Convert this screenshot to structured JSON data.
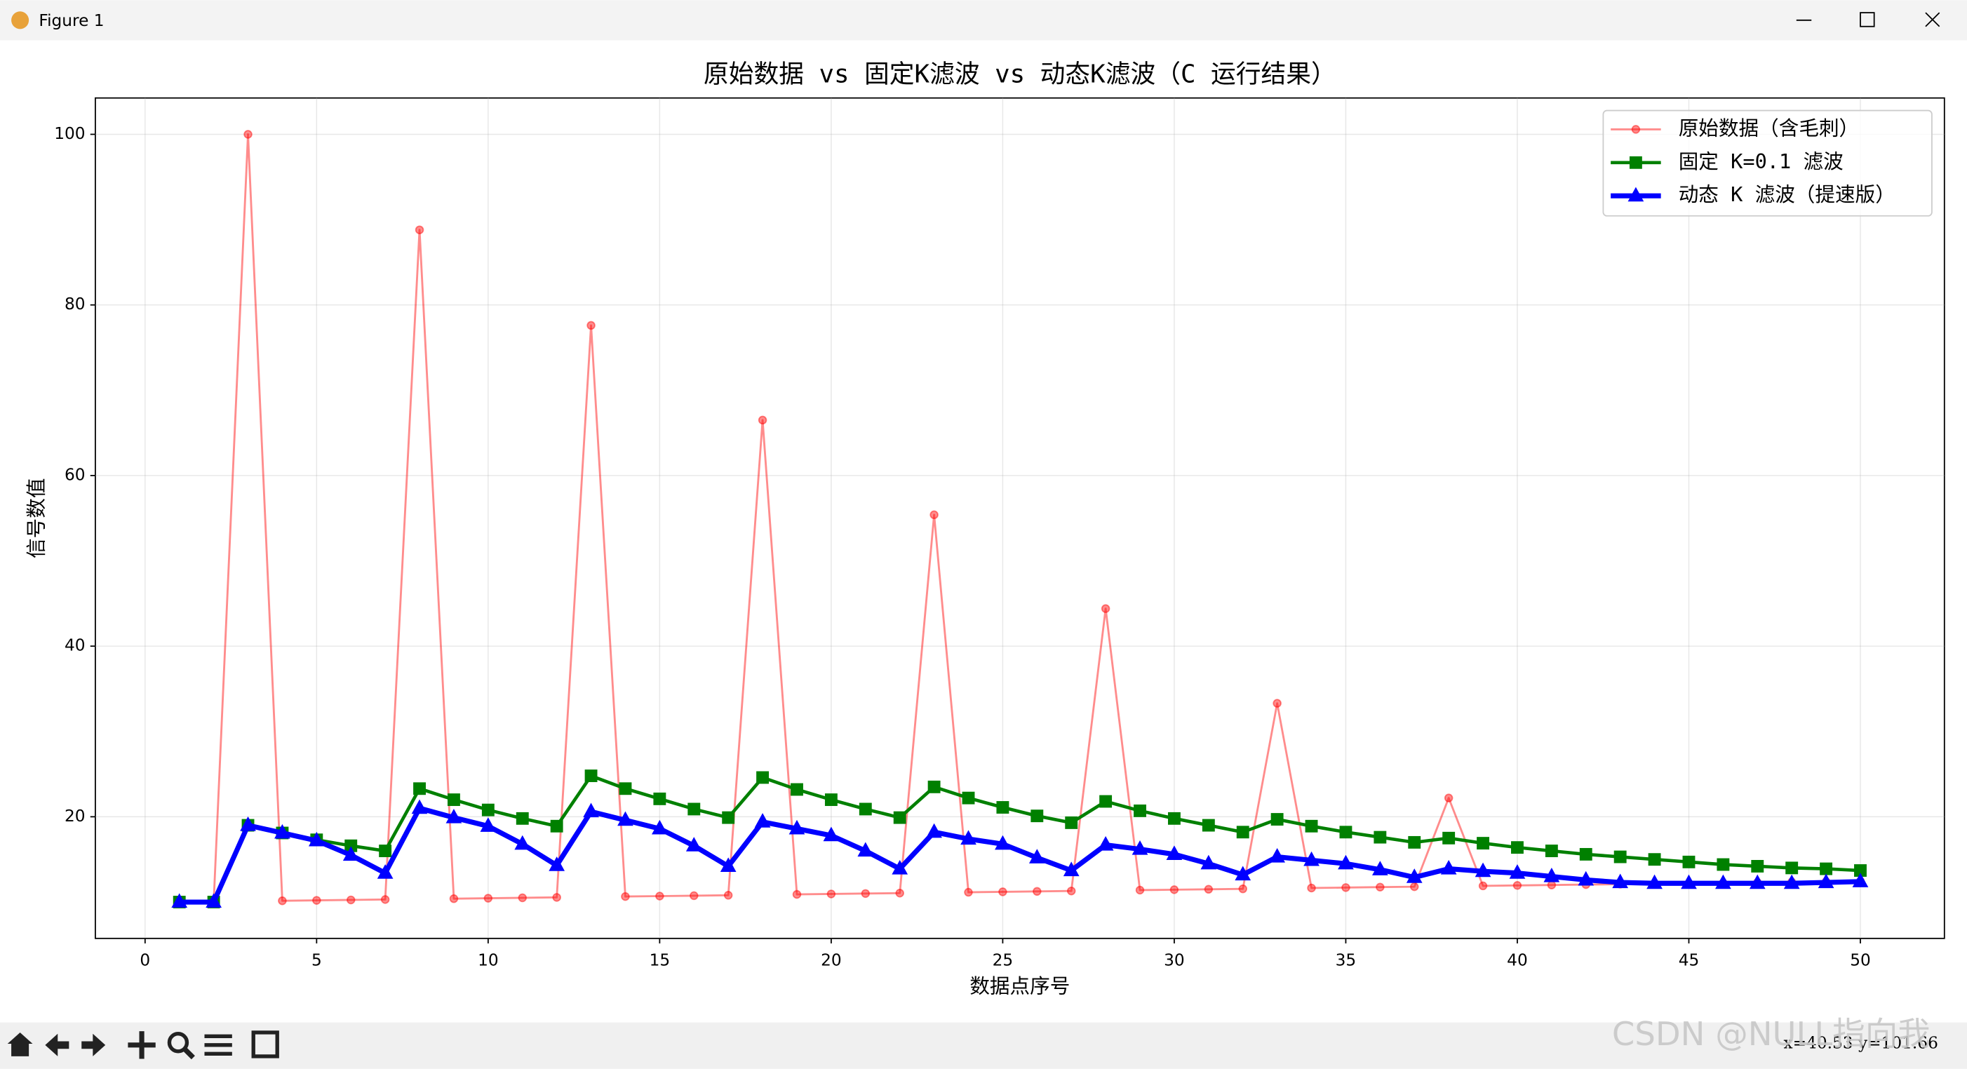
{
  "window": {
    "title": "Figure 1",
    "status": "x=40.53 y=101.66",
    "watermark": "CSDN @NULL指向我"
  },
  "chart_data": {
    "type": "line",
    "title": "原始数据 vs 固定K滤波 vs 动态K滤波（C 运行结果）",
    "x_label": "数据点序号",
    "y_label": "信号数值",
    "x": [
      1,
      2,
      3,
      4,
      5,
      6,
      7,
      8,
      9,
      10,
      11,
      12,
      13,
      14,
      15,
      16,
      17,
      18,
      19,
      20,
      21,
      22,
      23,
      24,
      25,
      26,
      27,
      28,
      29,
      30,
      31,
      32,
      33,
      34,
      35,
      36,
      37,
      38,
      39,
      40,
      41,
      42,
      43,
      44,
      45,
      46,
      47,
      48,
      49,
      50
    ],
    "series": [
      {
        "name": "原始数据（含毛刺）",
        "color": "#ff0000",
        "marker": "o",
        "alpha": 0.45,
        "linewidth": 1.6,
        "values": [
          10,
          10,
          100,
          10.15,
          10.2,
          10.25,
          10.3,
          88.8,
          10.4,
          10.45,
          10.5,
          10.55,
          77.6,
          10.65,
          10.7,
          10.75,
          10.8,
          66.5,
          10.9,
          10.95,
          11.0,
          11.05,
          55.4,
          11.15,
          11.2,
          11.25,
          11.3,
          44.4,
          11.4,
          11.45,
          11.5,
          11.55,
          33.3,
          11.65,
          11.7,
          11.75,
          11.8,
          22.2,
          11.9,
          11.95,
          12.0,
          12.05,
          12.1,
          12.15,
          12.2,
          12.25,
          12.3,
          12.35,
          12.4,
          12.45
        ]
      },
      {
        "name": "固定 K=0.1 滤波",
        "color": "#008000",
        "marker": "s",
        "alpha": 1,
        "linewidth": 2.6,
        "values": [
          10,
          10,
          19.0,
          18.1,
          17.3,
          16.6,
          16.0,
          23.3,
          22.0,
          20.8,
          19.8,
          18.9,
          24.8,
          23.3,
          22.1,
          20.9,
          19.9,
          24.6,
          23.2,
          22.0,
          20.9,
          19.9,
          23.5,
          22.2,
          21.1,
          20.1,
          19.3,
          21.8,
          20.7,
          19.8,
          19.0,
          18.2,
          19.7,
          18.9,
          18.2,
          17.6,
          17.0,
          17.5,
          16.9,
          16.4,
          16.0,
          15.6,
          15.3,
          15.0,
          14.7,
          14.4,
          14.2,
          14.0,
          13.9,
          13.7
        ]
      },
      {
        "name": "动态 K 滤波（提速版）",
        "color": "#0000ff",
        "marker": "^",
        "alpha": 1,
        "linewidth": 4,
        "values": [
          10,
          10,
          19.0,
          18.1,
          17.2,
          15.5,
          13.4,
          21.0,
          19.9,
          18.9,
          16.8,
          14.3,
          20.6,
          19.6,
          18.6,
          16.6,
          14.2,
          19.4,
          18.6,
          17.8,
          16.0,
          13.9,
          18.2,
          17.4,
          16.8,
          15.2,
          13.7,
          16.7,
          16.2,
          15.6,
          14.5,
          13.2,
          15.3,
          14.9,
          14.5,
          13.8,
          12.9,
          13.9,
          13.6,
          13.4,
          13.0,
          12.6,
          12.3,
          12.2,
          12.2,
          12.2,
          12.2,
          12.2,
          12.3,
          12.4
        ]
      }
    ],
    "xlim": [
      -1.45,
      52.45
    ],
    "ylim": [
      5.74,
      104.26
    ],
    "xticks": [
      0,
      5,
      10,
      15,
      20,
      25,
      30,
      35,
      40,
      45,
      50
    ],
    "yticks": [
      20,
      40,
      60,
      80,
      100
    ],
    "grid": true,
    "legend": "upper right"
  }
}
